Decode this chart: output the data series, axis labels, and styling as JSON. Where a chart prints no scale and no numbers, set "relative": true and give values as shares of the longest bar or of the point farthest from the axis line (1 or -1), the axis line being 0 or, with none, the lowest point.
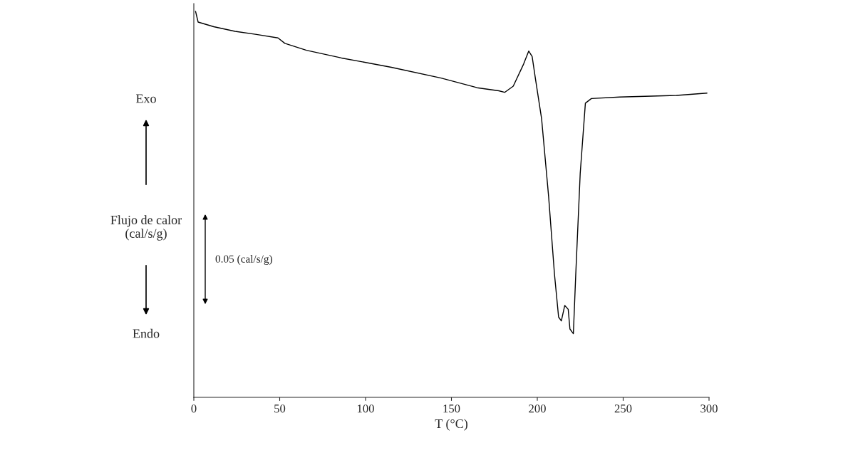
{
  "chart_data": {
    "type": "line",
    "relative": true,
    "xlabel": "T (°C)",
    "ylabel": "Flujo de calor\n(cal/s/g)",
    "xlim": [
      0,
      300
    ],
    "xticks": [
      0,
      50,
      100,
      150,
      200,
      250,
      300
    ],
    "annotations": [
      "Exo",
      "Endo",
      "0.05 (cal/s/g)"
    ],
    "series": [
      {
        "color": "#000000",
        "x": [
          1,
          2.5,
          11.6,
          24,
          36.5,
          49,
          53,
          65.6,
          86,
          115,
          144,
          165,
          177.6,
          181,
          186,
          192,
          195,
          197,
          199,
          202.5,
          206.6,
          210,
          212.4,
          214,
          216,
          218,
          219,
          221,
          222.4,
          225,
          228,
          231.5,
          248,
          281,
          298.8
        ],
        "values": [
          1.0,
          0.972,
          0.96,
          0.948,
          0.94,
          0.931,
          0.917,
          0.899,
          0.879,
          0.855,
          0.827,
          0.802,
          0.794,
          0.79,
          0.806,
          0.863,
          0.897,
          0.883,
          0.823,
          0.722,
          0.52,
          0.319,
          0.208,
          0.198,
          0.238,
          0.228,
          0.177,
          0.165,
          0.319,
          0.581,
          0.762,
          0.774,
          0.778,
          0.782,
          0.788
        ]
      }
    ]
  }
}
